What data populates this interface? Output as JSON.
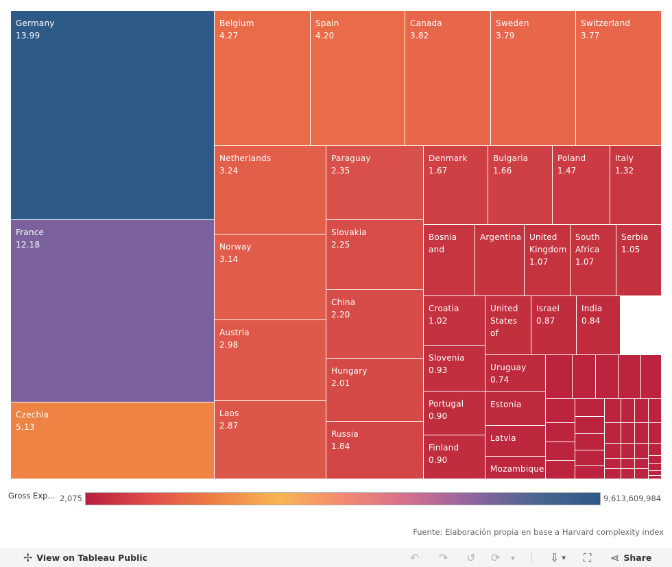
{
  "chart_data": {
    "type": "treemap",
    "unit": "share",
    "items": [
      {
        "name": "Germany",
        "value": 13.99,
        "color": "#2e5a88",
        "label": "13.99"
      },
      {
        "name": "France",
        "value": 12.18,
        "color": "#7b629e",
        "label": "12.18"
      },
      {
        "name": "Czechia",
        "value": 5.13,
        "color": "#ee8344",
        "label": "5.13"
      },
      {
        "name": "Belgium",
        "value": 4.27,
        "color": "#e96b48",
        "label": "4.27"
      },
      {
        "name": "Spain",
        "value": 4.2,
        "color": "#e96b48",
        "label": "4.20"
      },
      {
        "name": "Canada",
        "value": 3.82,
        "color": "#e8664a",
        "label": "3.82"
      },
      {
        "name": "Sweden",
        "value": 3.79,
        "color": "#e8664a",
        "label": "3.79"
      },
      {
        "name": "Switzerland",
        "value": 3.77,
        "color": "#e8664a",
        "label": "3.77"
      },
      {
        "name": "Netherlands",
        "value": 3.24,
        "color": "#e35f4a",
        "label": "3.24"
      },
      {
        "name": "Norway",
        "value": 3.14,
        "color": "#e15c4a",
        "label": "3.14"
      },
      {
        "name": "Austria",
        "value": 2.98,
        "color": "#df594a",
        "label": "2.98"
      },
      {
        "name": "Laos",
        "value": 2.87,
        "color": "#dd564a",
        "label": "2.87"
      },
      {
        "name": "Paraguay",
        "value": 2.35,
        "color": "#d94f49",
        "label": "2.35"
      },
      {
        "name": "Slovakia",
        "value": 2.25,
        "color": "#d84d48",
        "label": "2.25"
      },
      {
        "name": "China",
        "value": 2.2,
        "color": "#d74c48",
        "label": "2.20"
      },
      {
        "name": "Hungary",
        "value": 2.01,
        "color": "#d54946",
        "label": "2.01"
      },
      {
        "name": "Russia",
        "value": 1.84,
        "color": "#d34645",
        "label": "1.84"
      },
      {
        "name": "Denmark",
        "value": 1.67,
        "color": "#cf4044",
        "label": "1.67"
      },
      {
        "name": "Bulgaria",
        "value": 1.66,
        "color": "#cf4044",
        "label": "1.66"
      },
      {
        "name": "Poland",
        "value": 1.47,
        "color": "#cc3b43",
        "label": "1.47"
      },
      {
        "name": "Italy",
        "value": 1.32,
        "color": "#c93741",
        "label": "1.32"
      },
      {
        "name": "Bosnia and",
        "value": null,
        "color": "#c63540",
        "label": ""
      },
      {
        "name": "Argentina",
        "value": null,
        "color": "#c6343f",
        "label": ""
      },
      {
        "name": "United Kingdom",
        "value": 1.07,
        "color": "#c5333f",
        "label": "1.07"
      },
      {
        "name": "South Africa",
        "value": 1.07,
        "color": "#c5333f",
        "label": "1.07"
      },
      {
        "name": "Serbia",
        "value": 1.05,
        "color": "#c5323f",
        "label": "1.05"
      },
      {
        "name": "Croatia",
        "value": 1.02,
        "color": "#c4313f",
        "label": "1.02"
      },
      {
        "name": "United States of",
        "value": null,
        "color": "#c2303e",
        "label": ""
      },
      {
        "name": "Israel",
        "value": 0.87,
        "color": "#c02d3e",
        "label": "0.87"
      },
      {
        "name": "India",
        "value": 0.84,
        "color": "#c02c3e",
        "label": "0.84"
      },
      {
        "name": "Slovenia",
        "value": 0.93,
        "color": "#c12e3e",
        "label": "0.93"
      },
      {
        "name": "Portugal",
        "value": 0.9,
        "color": "#c02d3e",
        "label": "0.90"
      },
      {
        "name": "Finland",
        "value": 0.9,
        "color": "#c02d3e",
        "label": "0.90"
      },
      {
        "name": "Uruguay",
        "value": 0.74,
        "color": "#bf2a3e",
        "label": "0.74"
      },
      {
        "name": "Estonia",
        "value": null,
        "color": "#be293e",
        "label": ""
      },
      {
        "name": "Latvia",
        "value": null,
        "color": "#bd283e",
        "label": ""
      },
      {
        "name": "Mozambique",
        "value": null,
        "color": "#bd273e",
        "label": ""
      }
    ],
    "unlabeled_tile_color": "#bc233f",
    "legend": {
      "title": "Gross Exp...",
      "min_label": "2,075",
      "max_label": "9,613,609,984",
      "gradient": [
        "#b81e3e",
        "#e04e4a",
        "#ee7f45",
        "#f7b553",
        "#f48a72",
        "#d56f8c",
        "#8f65a0",
        "#4b6590",
        "#2e5a88"
      ]
    },
    "source": "Fuente: Elaboración propia en base a Harvard complexity index"
  },
  "toolbar": {
    "view_label": "View on Tableau Public",
    "share_label": "Share",
    "icons": {
      "tableau": "✢",
      "undo": "↶",
      "redo": "↷",
      "revert": "↺",
      "refresh": "⟳",
      "pause": "▾",
      "download": "⇩",
      "fullscreen": "⛶",
      "share": "⋖"
    }
  }
}
